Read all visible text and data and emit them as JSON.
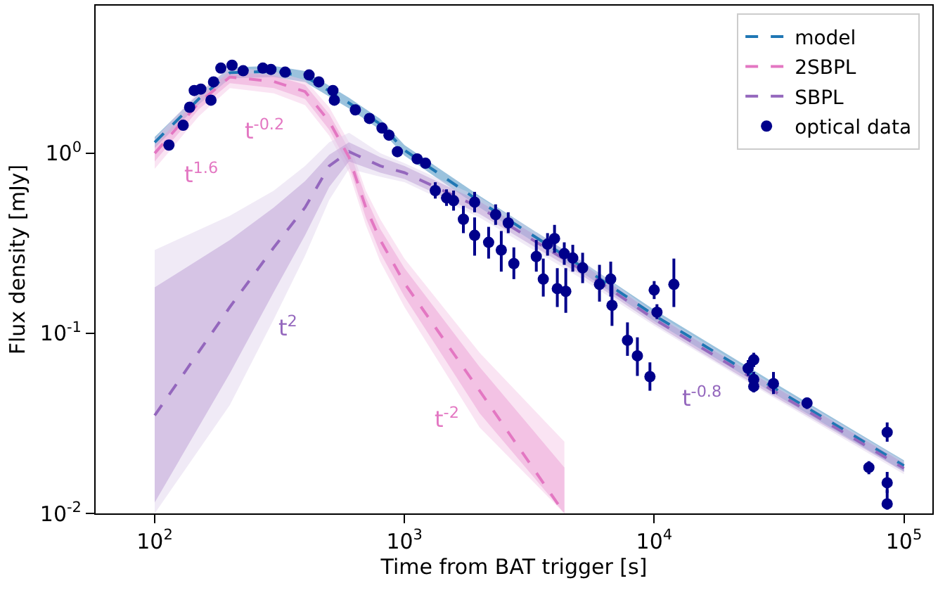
{
  "chart_data": {
    "type": "line",
    "xlabel": "Time from BAT trigger [s]",
    "ylabel": "Flux density [mJy]",
    "log": "xy",
    "legend": "top right",
    "line_style": "dashed",
    "marker": "none",
    "xlim": [
      58,
      130000
    ],
    "ylim": [
      0.01,
      6.6
    ],
    "xticks": [
      {
        "value": 100,
        "label": "10$^{2}$"
      },
      {
        "value": 1000,
        "label": "10$^{3}$"
      },
      {
        "value": 10000,
        "label": "10$^{4}$"
      },
      {
        "value": 100000,
        "label": "10$^{5}$"
      }
    ],
    "yticks": [
      {
        "value": 0.01,
        "label": "10$^{-2}$"
      },
      {
        "value": 0.1,
        "label": "10$^{-1}$"
      },
      {
        "value": 1,
        "label": "10$^{0}$"
      }
    ],
    "series": [
      {
        "name": "model",
        "color": "#1f77b4",
        "x": [
          100,
          150,
          200,
          300,
          400,
          600,
          800,
          1000,
          2000,
          5000,
          10000,
          30000,
          100000
        ],
        "values": [
          1.15,
          2.0,
          2.8,
          2.85,
          2.67,
          1.9,
          1.45,
          1.04,
          0.54,
          0.24,
          0.126,
          0.05,
          0.0184
        ],
        "lower": [
          1.07,
          1.86,
          2.6,
          2.65,
          2.48,
          1.77,
          1.35,
          0.97,
          0.5,
          0.223,
          0.117,
          0.0465,
          0.0171
        ],
        "upper": [
          1.23,
          2.14,
          3.0,
          3.05,
          2.86,
          2.03,
          1.55,
          1.11,
          0.58,
          0.257,
          0.135,
          0.0535,
          0.0197
        ]
      },
      {
        "name": "2SBPL",
        "color": "#e377c2",
        "x": [
          100,
          150,
          200,
          300,
          400,
          500,
          600,
          700,
          800,
          1000,
          2000,
          4370
        ],
        "values": [
          1.0,
          1.9,
          2.65,
          2.5,
          2.2,
          1.5,
          0.95,
          0.5,
          0.33,
          0.19,
          0.048,
          0.01
        ],
        "lower": [
          0.9,
          1.75,
          2.45,
          2.3,
          2.0,
          1.35,
          0.85,
          0.44,
          0.28,
          0.16,
          0.036,
          0.01
        ],
        "upper": [
          1.1,
          2.05,
          2.85,
          2.7,
          2.4,
          1.65,
          1.05,
          0.57,
          0.38,
          0.23,
          0.065,
          0.018
        ]
      },
      {
        "color": "#f3c4e5",
        "x": [
          100,
          150,
          200,
          300,
          400,
          500,
          600,
          700,
          800,
          1000,
          2000,
          4370
        ],
        "values": [
          null,
          null,
          null,
          null,
          null,
          null,
          null,
          null,
          null,
          null,
          null,
          null
        ],
        "lower": [
          0.82,
          1.6,
          2.3,
          2.15,
          1.85,
          1.25,
          0.78,
          0.4,
          0.25,
          0.14,
          0.03,
          0.01
        ],
        "upper": [
          1.2,
          2.2,
          3.0,
          2.85,
          2.55,
          1.8,
          1.15,
          0.62,
          0.43,
          0.26,
          0.078,
          0.025
        ]
      },
      {
        "name": "SBPL",
        "color": "#9467bd",
        "x": [
          100,
          200,
          300,
          400,
          500,
          600,
          800,
          1000,
          2000,
          5000,
          10000,
          15500,
          30000,
          100000
        ],
        "values": [
          0.035,
          0.14,
          0.3,
          0.5,
          0.85,
          1.02,
          0.85,
          0.78,
          0.5,
          0.23,
          0.12,
          0.083,
          0.048,
          0.0178
        ],
        "lower": [
          0.0115,
          0.06,
          0.17,
          0.35,
          0.65,
          0.9,
          0.78,
          0.72,
          0.46,
          0.215,
          0.113,
          0.078,
          0.045,
          0.017
        ],
        "upper": [
          0.18,
          0.33,
          0.5,
          0.7,
          0.98,
          1.15,
          0.95,
          0.85,
          0.54,
          0.25,
          0.128,
          0.088,
          0.051,
          0.019
        ]
      },
      {
        "color": "#ddd0ec",
        "x": [
          100,
          200,
          300,
          400,
          500,
          600,
          800,
          1000,
          2000,
          5000,
          10000,
          30000,
          100000
        ],
        "values": [
          null,
          null,
          null,
          null,
          null,
          null,
          null,
          null,
          null,
          null,
          null,
          null,
          null
        ],
        "lower": [
          0.01,
          0.04,
          0.12,
          0.27,
          0.55,
          0.82,
          0.74,
          0.69,
          0.44,
          0.205,
          0.11,
          0.044,
          0.0165
        ],
        "upper": [
          0.29,
          0.45,
          0.62,
          0.85,
          1.15,
          1.3,
          1.0,
          0.88,
          0.57,
          0.26,
          0.131,
          0.052,
          0.0195
        ]
      },
      {
        "type": "scatter",
        "name": "optical data",
        "color": "#00008b",
        "marker": "circle",
        "x": [
          114,
          130,
          138,
          144,
          153,
          168,
          172,
          184,
          204,
          226,
          271,
          292,
          333,
          415,
          454,
          517,
          524,
          636,
          724,
          813,
          867,
          937,
          1124,
          1214,
          1329,
          1474,
          1573,
          1722,
          1910,
          1910,
          2173,
          2318,
          2442,
          2604,
          2742,
          3373,
          3597,
          3741,
          3990,
          4093,
          4365,
          4426,
          4721,
          5170,
          6039,
          6698,
          6778,
          7816,
          8565,
          9616,
          10000,
          10260,
          11990,
          23780,
          25040,
          25040,
          25040,
          30030,
          40930,
          72400,
          85700,
          85700,
          85700
        ],
        "values": [
          1.11,
          1.43,
          1.8,
          2.23,
          2.27,
          1.97,
          2.49,
          2.97,
          3.08,
          2.87,
          2.97,
          2.92,
          2.82,
          2.72,
          2.49,
          2.23,
          1.97,
          1.74,
          1.56,
          1.38,
          1.26,
          1.02,
          0.93,
          0.88,
          0.62,
          0.565,
          0.545,
          0.43,
          0.535,
          0.35,
          0.32,
          0.456,
          0.29,
          0.41,
          0.244,
          0.267,
          0.2,
          0.313,
          0.336,
          0.177,
          0.277,
          0.171,
          0.262,
          0.231,
          0.187,
          0.2,
          0.143,
          0.0914,
          0.075,
          0.0575,
          0.174,
          0.131,
          0.187,
          0.064,
          0.0713,
          0.0555,
          0.0507,
          0.0526,
          0.041,
          0.018,
          0.0282,
          0.0148,
          0.0113
        ],
        "errors": [
          null,
          null,
          null,
          null,
          null,
          null,
          null,
          null,
          null,
          null,
          null,
          null,
          null,
          null,
          null,
          null,
          null,
          null,
          null,
          null,
          null,
          null,
          null,
          null,
          [
            0.56,
            0.69
          ],
          [
            0.51,
            0.63
          ],
          [
            0.48,
            0.62
          ],
          [
            0.36,
            0.51
          ],
          [
            0.47,
            0.61
          ],
          [
            0.27,
            0.44
          ],
          [
            0.26,
            0.39
          ],
          [
            0.4,
            0.52
          ],
          [
            0.22,
            0.37
          ],
          [
            0.36,
            0.47
          ],
          [
            0.2,
            0.3
          ],
          [
            0.22,
            0.33
          ],
          [
            0.16,
            0.26
          ],
          [
            0.27,
            0.36
          ],
          [
            0.28,
            0.4
          ],
          [
            0.14,
            0.23
          ],
          [
            0.24,
            0.32
          ],
          [
            0.13,
            0.23
          ],
          [
            0.22,
            0.31
          ],
          [
            0.19,
            0.28
          ],
          [
            0.15,
            0.24
          ],
          [
            0.16,
            0.25
          ],
          [
            0.11,
            0.19
          ],
          [
            0.075,
            0.115
          ],
          [
            0.058,
            0.095
          ],
          [
            0.048,
            0.069
          ],
          [
            0.155,
            0.195
          ],
          [
            0.12,
            0.145
          ],
          [
            0.14,
            0.26
          ],
          [
            0.058,
            0.071
          ],
          [
            0.065,
            0.078
          ],
          [
            0.051,
            0.061
          ],
          [
            0.047,
            0.055
          ],
          [
            0.046,
            0.061
          ],
          [
            0.038,
            0.044
          ],
          [
            0.0165,
            0.0195
          ],
          [
            0.025,
            0.032
          ],
          [
            0.013,
            0.017
          ],
          [
            0.0105,
            0.0135
          ]
        ]
      }
    ],
    "annotations": [
      {
        "text": "t$^{1.6}$",
        "x": 150,
        "y": 1.9
      },
      {
        "text": "t$^{-0.2}$",
        "x": 300,
        "y": 2.5
      },
      {
        "text": "t$^{2}$",
        "x": 300,
        "y": 0.3
      },
      {
        "text": "t$^{-2}$",
        "x": 2000,
        "y": 0.048
      },
      {
        "text": "t$^{-0.8}$",
        "x": 15500,
        "y": 0.083
      }
    ]
  }
}
